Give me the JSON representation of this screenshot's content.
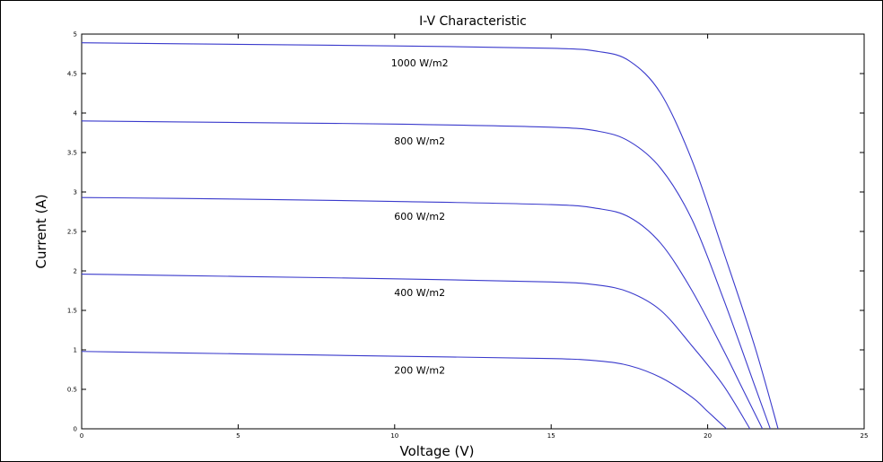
{
  "chart_data": {
    "type": "line",
    "title": "I-V Characteristic",
    "xlabel": "Voltage (V)",
    "ylabel": "Current (A)",
    "xlim": [
      0,
      25
    ],
    "ylim": [
      0,
      5
    ],
    "xticks": [
      "0",
      "5",
      "10",
      "15",
      "20",
      "25"
    ],
    "yticks": [
      "0",
      "0.5",
      "1",
      "1.5",
      "2",
      "2.5",
      "3",
      "3.5",
      "4",
      "4.5",
      "5"
    ],
    "grid": false,
    "line_color": "#3a3acc",
    "series": [
      {
        "name": "1000 W/m2",
        "x": [
          0,
          5,
          10,
          15,
          16.5,
          17.5,
          18.5,
          19.5,
          20.5,
          21.5,
          22.25
        ],
        "y": [
          4.89,
          4.87,
          4.85,
          4.82,
          4.78,
          4.66,
          4.25,
          3.4,
          2.25,
          1.05,
          0
        ]
      },
      {
        "name": "800 W/m2",
        "x": [
          0,
          5,
          10,
          15,
          16.5,
          17.5,
          18.5,
          19.5,
          20.5,
          21.5,
          22.0
        ],
        "y": [
          3.9,
          3.88,
          3.86,
          3.82,
          3.77,
          3.64,
          3.3,
          2.65,
          1.65,
          0.55,
          0
        ]
      },
      {
        "name": "600 W/m2",
        "x": [
          0,
          5,
          10,
          15,
          16.5,
          17.5,
          18.5,
          19.5,
          20.5,
          21.0,
          21.75
        ],
        "y": [
          2.93,
          2.91,
          2.88,
          2.84,
          2.79,
          2.68,
          2.35,
          1.75,
          1.0,
          0.6,
          0
        ]
      },
      {
        "name": "400 W/m2",
        "x": [
          0,
          5,
          10,
          15,
          16.5,
          17.5,
          18.5,
          19.5,
          20.5,
          21.35
        ],
        "y": [
          1.96,
          1.93,
          1.9,
          1.86,
          1.82,
          1.73,
          1.5,
          1.05,
          0.55,
          0
        ]
      },
      {
        "name": "200 W/m2",
        "x": [
          0,
          5,
          10,
          15,
          16.5,
          17.5,
          18.5,
          19.5,
          20.0,
          20.6
        ],
        "y": [
          0.98,
          0.95,
          0.92,
          0.89,
          0.86,
          0.8,
          0.65,
          0.4,
          0.22,
          0
        ]
      }
    ],
    "annotations": [
      {
        "text": "1000 W/m2",
        "x": 10.8,
        "y": 4.59
      },
      {
        "text": "800 W/m2",
        "x": 10.8,
        "y": 3.6
      },
      {
        "text": "600 W/m2",
        "x": 10.8,
        "y": 2.65
      },
      {
        "text": "400 W/m2",
        "x": 10.8,
        "y": 1.68
      },
      {
        "text": "200 W/m2",
        "x": 10.8,
        "y": 0.7
      }
    ]
  }
}
